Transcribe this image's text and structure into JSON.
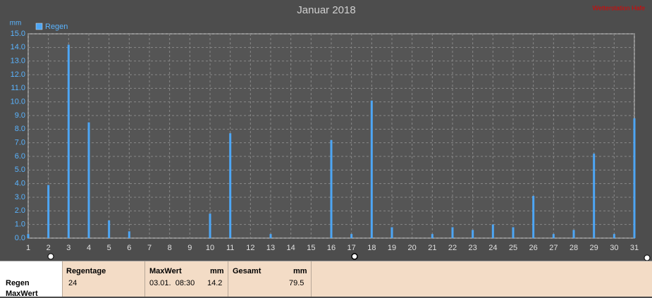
{
  "chart_data": {
    "type": "bar",
    "title": "Januar 2018",
    "corner_note": "Wetterstation Hafe",
    "y_unit": "mm",
    "xlim": [
      1,
      31
    ],
    "xticks": [
      1,
      2,
      3,
      4,
      5,
      6,
      7,
      8,
      9,
      10,
      11,
      12,
      13,
      14,
      15,
      16,
      17,
      18,
      19,
      20,
      21,
      22,
      23,
      24,
      25,
      26,
      27,
      28,
      29,
      30,
      31
    ],
    "ylim": [
      0,
      15
    ],
    "yticks": [
      {
        "value": 0,
        "label": "0.0"
      },
      {
        "value": 1,
        "label": "1.0"
      },
      {
        "value": 2,
        "label": "2.0"
      },
      {
        "value": 3,
        "label": "3.0"
      },
      {
        "value": 4,
        "label": "4.0"
      },
      {
        "value": 5,
        "label": "5.0"
      },
      {
        "value": 6,
        "label": "6.0"
      },
      {
        "value": 7,
        "label": "7.0"
      },
      {
        "value": 8,
        "label": "8.0"
      },
      {
        "value": 9,
        "label": "9.0"
      },
      {
        "value": 10,
        "label": "10.0"
      },
      {
        "value": 11,
        "label": "11.0"
      },
      {
        "value": 12,
        "label": "12.0"
      },
      {
        "value": 13,
        "label": "13.0"
      },
      {
        "value": 14,
        "label": "14.0"
      },
      {
        "value": 15,
        "label": "15.0"
      }
    ],
    "grid": true,
    "series": [
      {
        "name": "Regen",
        "color": "#4da6f5",
        "x": [
          1,
          2,
          3,
          4,
          5,
          6,
          10,
          11,
          13,
          16,
          17,
          18,
          19,
          21,
          22,
          23,
          24,
          25,
          26,
          27,
          28,
          29,
          30,
          31
        ],
        "values": [
          0.3,
          3.9,
          14.2,
          8.5,
          1.3,
          0.5,
          1.8,
          7.7,
          0.3,
          7.2,
          0.3,
          10.1,
          0.8,
          0.3,
          0.8,
          0.6,
          1.0,
          0.8,
          3.1,
          0.3,
          0.6,
          6.2,
          0.3,
          8.8
        ]
      }
    ]
  },
  "table": {
    "row_labels": [
      "Regen",
      "MaxWert"
    ],
    "columns": [
      {
        "header": "Regentage",
        "unit": "",
        "cells": [
          24
        ]
      },
      {
        "header": "MaxWert",
        "unit": "mm",
        "cells": [
          "03.01.  08:30",
          14.2
        ]
      },
      {
        "header": "Gesamt",
        "unit": "mm",
        "cells": [
          79.5
        ]
      }
    ]
  }
}
